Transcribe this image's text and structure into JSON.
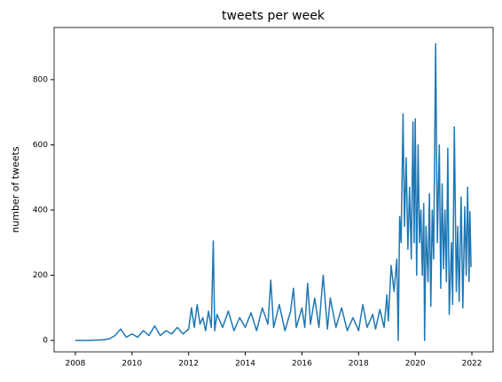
{
  "chart_data": {
    "type": "line",
    "title": "tweets per week",
    "ylabel": "number of tweets",
    "x": [
      2008.0,
      2008.5,
      2009.0,
      2009.2,
      2009.4,
      2009.6,
      2009.8,
      2010.0,
      2010.2,
      2010.4,
      2010.6,
      2010.8,
      2011.0,
      2011.2,
      2011.4,
      2011.6,
      2011.8,
      2012.0,
      2012.1,
      2012.2,
      2012.3,
      2012.4,
      2012.5,
      2012.6,
      2012.7,
      2012.8,
      2012.87,
      2012.92,
      2013.0,
      2013.2,
      2013.4,
      2013.6,
      2013.8,
      2014.0,
      2014.2,
      2014.4,
      2014.6,
      2014.8,
      2014.9,
      2015.0,
      2015.2,
      2015.4,
      2015.6,
      2015.7,
      2015.8,
      2016.0,
      2016.1,
      2016.2,
      2016.3,
      2016.45,
      2016.6,
      2016.75,
      2016.9,
      2017.0,
      2017.2,
      2017.4,
      2017.6,
      2017.8,
      2018.0,
      2018.15,
      2018.3,
      2018.5,
      2018.6,
      2018.75,
      2018.9,
      2019.0,
      2019.05,
      2019.15,
      2019.25,
      2019.35,
      2019.4,
      2019.45,
      2019.5,
      2019.57,
      2019.62,
      2019.68,
      2019.74,
      2019.8,
      2019.86,
      2019.92,
      2019.96,
      2020.0,
      2020.05,
      2020.1,
      2020.15,
      2020.2,
      2020.25,
      2020.3,
      2020.33,
      2020.38,
      2020.45,
      2020.5,
      2020.55,
      2020.6,
      2020.65,
      2020.72,
      2020.78,
      2020.85,
      2020.9,
      2020.95,
      2021.0,
      2021.05,
      2021.1,
      2021.15,
      2021.2,
      2021.28,
      2021.32,
      2021.38,
      2021.45,
      2021.5,
      2021.55,
      2021.62,
      2021.68,
      2021.75,
      2021.8,
      2021.85,
      2021.9,
      2021.93,
      2021.97
    ],
    "series": [
      {
        "color": "#1f77b4",
        "values": [
          0,
          0,
          2,
          5,
          15,
          35,
          10,
          20,
          10,
          30,
          15,
          45,
          15,
          30,
          20,
          40,
          20,
          35,
          100,
          40,
          110,
          50,
          70,
          30,
          90,
          40,
          305,
          30,
          80,
          40,
          90,
          30,
          70,
          40,
          85,
          30,
          100,
          50,
          185,
          40,
          110,
          30,
          90,
          160,
          40,
          100,
          40,
          175,
          50,
          130,
          40,
          200,
          35,
          130,
          40,
          100,
          30,
          70,
          30,
          110,
          40,
          80,
          35,
          95,
          40,
          140,
          60,
          230,
          150,
          250,
          0,
          380,
          300,
          695,
          350,
          560,
          280,
          470,
          250,
          670,
          300,
          680,
          200,
          600,
          300,
          400,
          200,
          420,
          0,
          350,
          180,
          450,
          105,
          400,
          250,
          910,
          300,
          600,
          160,
          480,
          220,
          400,
          180,
          590,
          80,
          300,
          110,
          655,
          150,
          350,
          120,
          440,
          100,
          410,
          200,
          470,
          180,
          395,
          225
        ]
      }
    ],
    "xlim": [
      2007.25,
      2022.75
    ],
    "xticks": [
      2008,
      2010,
      2012,
      2014,
      2016,
      2018,
      2020,
      2022
    ],
    "ylim": [
      -35,
      960
    ],
    "yticks": [
      0,
      200,
      400,
      600,
      800
    ]
  }
}
